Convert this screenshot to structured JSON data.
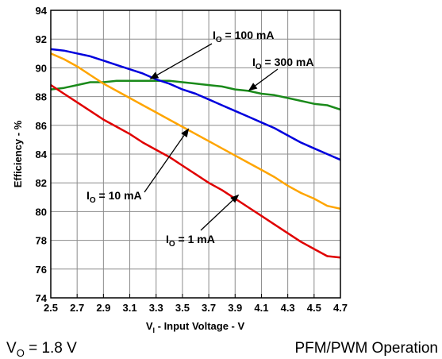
{
  "chart_data": {
    "type": "line",
    "xlabel": {
      "main": "V",
      "sub": "I",
      "rest": " - Input Voltage - V"
    },
    "ylabel": "Efficiency - %",
    "xlim": [
      2.5,
      4.7
    ],
    "ylim": [
      74,
      94
    ],
    "xticks": [
      2.5,
      2.7,
      2.9,
      3.1,
      3.3,
      3.5,
      3.7,
      3.9,
      4.1,
      4.3,
      4.5,
      4.7
    ],
    "yticks": [
      74,
      76,
      78,
      80,
      82,
      84,
      86,
      88,
      90,
      92,
      94
    ],
    "grid": true,
    "series": [
      {
        "name": "I_O = 300 mA",
        "color": "#1a8a1a",
        "x": [
          2.5,
          2.6,
          2.7,
          2.8,
          2.9,
          3.0,
          3.1,
          3.2,
          3.3,
          3.4,
          3.5,
          3.6,
          3.7,
          3.8,
          3.9,
          4.0,
          4.1,
          4.2,
          4.3,
          4.4,
          4.5,
          4.6,
          4.7
        ],
        "y": [
          88.5,
          88.6,
          88.8,
          89.0,
          89.0,
          89.1,
          89.1,
          89.1,
          89.1,
          89.1,
          89.0,
          88.9,
          88.8,
          88.7,
          88.5,
          88.4,
          88.2,
          88.1,
          87.9,
          87.7,
          87.5,
          87.4,
          87.1
        ]
      },
      {
        "name": "I_O = 100 mA",
        "color": "#0000dd",
        "x": [
          2.5,
          2.6,
          2.7,
          2.8,
          2.9,
          3.0,
          3.1,
          3.2,
          3.3,
          3.4,
          3.5,
          3.6,
          3.7,
          3.8,
          3.9,
          4.0,
          4.1,
          4.2,
          4.3,
          4.4,
          4.5,
          4.6,
          4.7
        ],
        "y": [
          91.3,
          91.2,
          91.0,
          90.8,
          90.5,
          90.2,
          89.9,
          89.6,
          89.2,
          88.9,
          88.5,
          88.2,
          87.8,
          87.4,
          87.0,
          86.6,
          86.2,
          85.8,
          85.3,
          84.8,
          84.4,
          84.0,
          83.6
        ]
      },
      {
        "name": "I_O = 10 mA",
        "color": "#ffa500",
        "x": [
          2.5,
          2.6,
          2.7,
          2.8,
          2.9,
          3.0,
          3.1,
          3.2,
          3.3,
          3.4,
          3.5,
          3.6,
          3.7,
          3.8,
          3.9,
          4.0,
          4.1,
          4.2,
          4.3,
          4.4,
          4.5,
          4.6,
          4.7
        ],
        "y": [
          91.0,
          90.6,
          90.1,
          89.5,
          88.9,
          88.4,
          87.9,
          87.4,
          86.9,
          86.4,
          85.9,
          85.4,
          84.9,
          84.4,
          83.9,
          83.4,
          82.9,
          82.4,
          81.8,
          81.3,
          80.9,
          80.4,
          80.2
        ]
      },
      {
        "name": "I_O = 1 mA",
        "color": "#e00000",
        "x": [
          2.5,
          2.6,
          2.7,
          2.8,
          2.9,
          3.0,
          3.1,
          3.2,
          3.3,
          3.4,
          3.5,
          3.6,
          3.7,
          3.8,
          3.9,
          4.0,
          4.1,
          4.2,
          4.3,
          4.4,
          4.5,
          4.6,
          4.7
        ],
        "y": [
          88.8,
          88.2,
          87.6,
          87.0,
          86.4,
          85.9,
          85.4,
          84.8,
          84.3,
          83.8,
          83.2,
          82.6,
          82.0,
          81.5,
          80.9,
          80.3,
          79.7,
          79.1,
          78.5,
          77.9,
          77.4,
          76.9,
          76.8
        ]
      }
    ],
    "annotations": [
      {
        "series": 1,
        "label_main": "I",
        "label_sub": "O",
        "label_rest": " = 100 mA",
        "x": 3.25,
        "y": 89.2
      },
      {
        "series": 0,
        "label_main": "I",
        "label_sub": "O",
        "label_rest": " = 300 mA",
        "x": 4.0,
        "y": 88.4
      },
      {
        "series": 2,
        "label_main": "I",
        "label_sub": "O",
        "label_rest": " = 10 mA",
        "x": 3.55,
        "y": 85.8
      },
      {
        "series": 3,
        "label_main": "I",
        "label_sub": "O",
        "label_rest": " = 1 mA",
        "x": 3.93,
        "y": 81.2
      }
    ]
  },
  "notes": {
    "left": {
      "main": "V",
      "sub": "O",
      "rest": " = 1.8 V"
    },
    "right": "PFM/PWM Operation"
  }
}
